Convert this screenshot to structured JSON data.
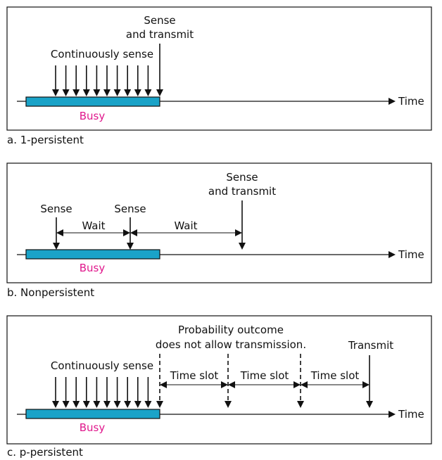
{
  "colors": {
    "busy_fill": "#1aa3c8",
    "busy_text": "#e0188c",
    "line": "#111111"
  },
  "panel_a": {
    "caption": "a. 1-persistent",
    "sense_transmit_line1": "Sense",
    "sense_transmit_line2": "and transmit",
    "continuous": "Continuously sense",
    "busy": "Busy",
    "time": "Time"
  },
  "panel_b": {
    "caption": "b. Nonpersistent",
    "sense_transmit_line1": "Sense",
    "sense_transmit_line2": "and transmit",
    "sense1": "Sense",
    "sense2": "Sense",
    "wait1": "Wait",
    "wait2": "Wait",
    "busy": "Busy",
    "time": "Time"
  },
  "panel_c": {
    "caption": "c. p-persistent",
    "outcome_line1": "Probability outcome",
    "outcome_line2": "does not allow transmission.",
    "transmit": "Transmit",
    "continuous": "Continuously sense",
    "slot1": "Time slot",
    "slot2": "Time slot",
    "slot3": "Time slot",
    "busy": "Busy",
    "time": "Time"
  }
}
